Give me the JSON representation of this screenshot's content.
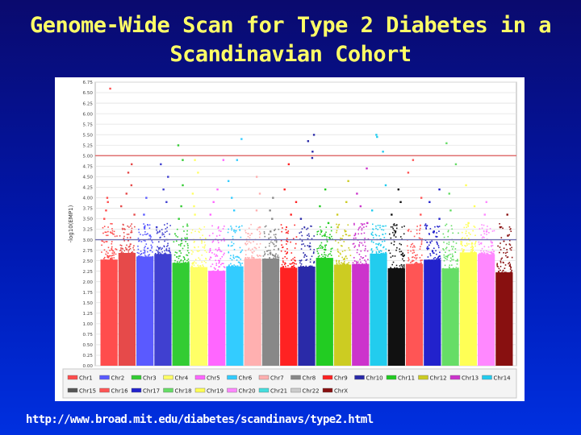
{
  "slide": {
    "title_line1": "Genome-Wide Scan for Type 2 Diabetes in a",
    "title_line2": "Scandinavian Cohort",
    "url": "http://www.broad.mit.edu/diabetes/scandinavs/type2.html"
  },
  "chart_data": {
    "type": "scatter",
    "ylabel": "-log10(EMP1)",
    "xlabel": "",
    "ylim": [
      0,
      6.75
    ],
    "ytick_step": 0.25,
    "reference_lines": [
      {
        "value": 5.0,
        "color": "#e07070"
      },
      {
        "value": 3.0,
        "color": "#7070b0"
      }
    ],
    "grid": "horizontal",
    "legend_placement": "bottom",
    "chromosomes": [
      {
        "name": "Chr1",
        "color": "#ff4d4d",
        "max": 6.6,
        "upper": [
          3.9,
          3.7,
          4.0,
          3.5
        ]
      },
      {
        "name": "Chr2",
        "color": "#e64a4a",
        "max": 4.8,
        "upper": [
          4.6,
          4.3,
          4.1,
          3.8,
          3.6
        ]
      },
      {
        "name": "Chr3",
        "color": "#5a5aff",
        "max": 4.0,
        "upper": [
          3.6,
          3.3,
          3.1
        ]
      },
      {
        "name": "Chr4",
        "color": "#4040d0",
        "max": 4.8,
        "upper": [
          4.5,
          4.2,
          3.9,
          3.3
        ]
      },
      {
        "name": "Chr5",
        "color": "#33cc33",
        "max": 5.25,
        "upper": [
          4.9,
          4.3,
          3.8,
          3.5
        ]
      },
      {
        "name": "Chr6",
        "color": "#ffff66",
        "max": 4.9,
        "upper": [
          4.6,
          4.1,
          3.8,
          3.6
        ]
      },
      {
        "name": "Chr7",
        "color": "#ff66ff",
        "max": 4.9,
        "upper": [
          4.2,
          3.9,
          3.6
        ]
      },
      {
        "name": "Chr8",
        "color": "#33ccff",
        "max": 5.4,
        "upper": [
          4.9,
          4.4,
          4.0,
          3.7
        ]
      },
      {
        "name": "Chr9",
        "color": "#ffb0b0",
        "max": 4.5,
        "upper": [
          4.1,
          3.7,
          3.3
        ]
      },
      {
        "name": "Chr10",
        "color": "#888888",
        "max": 4.0,
        "upper": [
          3.7,
          3.5,
          3.2
        ]
      },
      {
        "name": "Chr11",
        "color": "#ff2222",
        "max": 4.8,
        "upper": [
          4.2,
          3.9,
          3.6
        ]
      },
      {
        "name": "Chr12",
        "color": "#2a2aa8",
        "max": 5.5,
        "upper": [
          5.35,
          5.1,
          4.95,
          3.5
        ]
      },
      {
        "name": "Chr13",
        "color": "#22cc22",
        "max": 4.2,
        "upper": [
          3.8,
          3.4,
          3.1
        ]
      },
      {
        "name": "Chr14",
        "color": "#cccc22",
        "max": 4.4,
        "upper": [
          3.9,
          3.6,
          3.3
        ]
      },
      {
        "name": "Chr15",
        "color": "#cc33cc",
        "max": 4.7,
        "upper": [
          4.1,
          3.8,
          3.4
        ]
      },
      {
        "name": "Chr16",
        "color": "#22ccee",
        "max": 5.5,
        "upper": [
          5.45,
          5.1,
          4.3,
          3.7
        ]
      },
      {
        "name": "Chr17",
        "color": "#111111",
        "max": 4.2,
        "upper": [
          3.9,
          3.6,
          3.2
        ]
      },
      {
        "name": "Chr18",
        "color": "#ff5555",
        "max": 4.9,
        "upper": [
          4.6,
          4.0,
          3.6
        ]
      },
      {
        "name": "Chr19",
        "color": "#2222cc",
        "max": 4.2,
        "upper": [
          3.9,
          3.5,
          3.2
        ]
      },
      {
        "name": "Chr20",
        "color": "#66dd66",
        "max": 5.3,
        "upper": [
          4.8,
          4.1,
          3.7
        ]
      },
      {
        "name": "Chr21",
        "color": "#ffff55",
        "max": 4.3,
        "upper": [
          3.8,
          3.4
        ]
      },
      {
        "name": "Chr22",
        "color": "#ff88ff",
        "max": 3.9,
        "upper": [
          3.6,
          3.2
        ]
      },
      {
        "name": "ChrX",
        "color": "#881010",
        "max": 3.6,
        "upper": [
          3.3,
          3.1
        ]
      }
    ]
  },
  "legend": {
    "items": [
      {
        "label": "Chr1",
        "color": "#ff4d4d"
      },
      {
        "label": "Chr2",
        "color": "#5a5aff"
      },
      {
        "label": "Chr3",
        "color": "#33cc33"
      },
      {
        "label": "Chr4",
        "color": "#ffff66"
      },
      {
        "label": "Chr5",
        "color": "#ff66ff"
      },
      {
        "label": "Chr6",
        "color": "#33ccff"
      },
      {
        "label": "Chr7",
        "color": "#ffb0b0"
      },
      {
        "label": "Chr8",
        "color": "#888888"
      },
      {
        "label": "Chr9",
        "color": "#ff2222"
      },
      {
        "label": "Chr10",
        "color": "#2a2aa8"
      },
      {
        "label": "Chr11",
        "color": "#22cc22"
      },
      {
        "label": "Chr12",
        "color": "#cccc22"
      },
      {
        "label": "Chr13",
        "color": "#cc33cc"
      },
      {
        "label": "Chr14",
        "color": "#22ccee"
      },
      {
        "label": "Chr15",
        "color": "#555555"
      },
      {
        "label": "Chr16",
        "color": "#ff5555"
      },
      {
        "label": "Chr17",
        "color": "#2222cc"
      },
      {
        "label": "Chr18",
        "color": "#66dd66"
      },
      {
        "label": "Chr19",
        "color": "#ffff55"
      },
      {
        "label": "Chr20",
        "color": "#ff88ff"
      },
      {
        "label": "Chr21",
        "color": "#44dddd"
      },
      {
        "label": "Chr22",
        "color": "#cccccc"
      },
      {
        "label": "ChrX",
        "color": "#881010"
      }
    ]
  }
}
